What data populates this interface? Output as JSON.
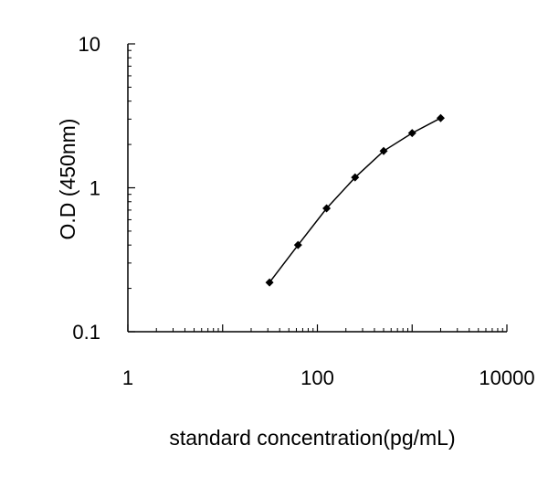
{
  "chart_data": {
    "type": "line",
    "title": "",
    "xlabel": "standard concentration(pg/mL)",
    "ylabel": "O.D (450nm)",
    "x_scale": "log",
    "y_scale": "log",
    "xlim": [
      1,
      10000
    ],
    "ylim": [
      0.1,
      10
    ],
    "x_tick_labels": [
      "1",
      "100",
      "10000"
    ],
    "y_tick_labels": [
      "10",
      "1",
      "0.1"
    ],
    "x_ticks": [
      1,
      100,
      10000
    ],
    "y_ticks": [
      10,
      1,
      0.1
    ],
    "grid": false,
    "legend": "none",
    "series": [
      {
        "x": [
          31.25,
          62.5,
          125,
          250,
          500,
          1000,
          2000
        ],
        "y": [
          0.22,
          0.4,
          0.72,
          1.18,
          1.8,
          2.4,
          3.05
        ],
        "color": "#000000",
        "marker": "diamond"
      }
    ]
  }
}
